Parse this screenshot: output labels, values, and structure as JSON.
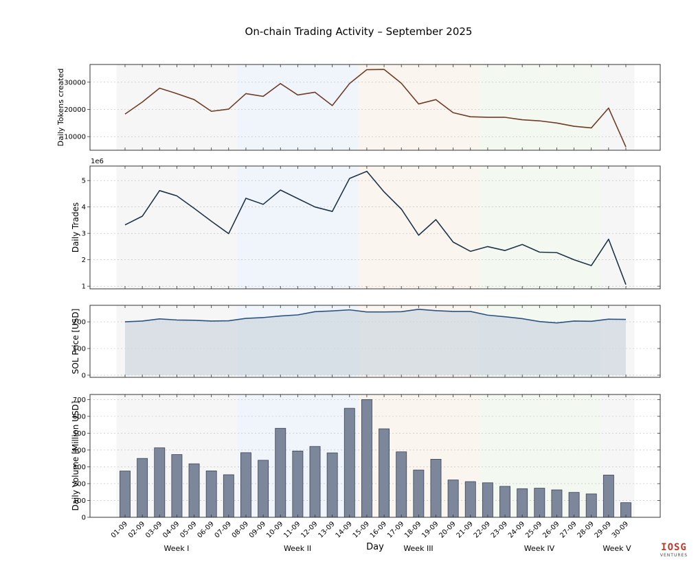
{
  "figure": {
    "title": "On-chain Trading Activity – September 2025",
    "x_axis_label": "Day",
    "watermark": "IOSG VENTURES"
  },
  "weeks": [
    {
      "label": "Week I",
      "start": "01-09",
      "end": "07-09",
      "color": "#e6e6e6"
    },
    {
      "label": "Week II",
      "start": "08-09",
      "end": "14-09",
      "color": "#d4e3f5"
    },
    {
      "label": "Week III",
      "start": "15-09",
      "end": "21-09",
      "color": "#f4e1d3"
    },
    {
      "label": "Week IV",
      "start": "22-09",
      "end": "28-09",
      "color": "#dcebd8"
    },
    {
      "label": "Week V",
      "start": "29-09",
      "end": "30-09",
      "color": "#e6e6e6"
    }
  ],
  "chart_data": [
    {
      "type": "line",
      "ylabel": "Daily Tokens created",
      "color": "#6e3b25",
      "ylim": [
        5000,
        36500
      ],
      "yticks": [
        10000,
        20000,
        30000
      ],
      "x": [
        "01-09",
        "02-09",
        "03-09",
        "04-09",
        "05-09",
        "06-09",
        "07-09",
        "08-09",
        "09-09",
        "10-09",
        "11-09",
        "12-09",
        "13-09",
        "14-09",
        "15-09",
        "16-09",
        "17-09",
        "18-09",
        "19-09",
        "20-09",
        "21-09",
        "22-09",
        "23-09",
        "24-09",
        "25-09",
        "26-09",
        "27-09",
        "28-09",
        "29-09",
        "30-09"
      ],
      "values": [
        18300,
        22700,
        27800,
        25800,
        23600,
        19300,
        20100,
        25800,
        24800,
        29500,
        25300,
        26300,
        21400,
        29500,
        34600,
        34700,
        29600,
        22000,
        23600,
        18800,
        17300,
        17100,
        17100,
        16200,
        15800,
        15000,
        13800,
        13200,
        20500,
        6200
      ]
    },
    {
      "type": "line",
      "ylabel": "Daily Trades",
      "scale_label": "1e6",
      "color": "#1e3347",
      "ylim": [
        0.9,
        5.55
      ],
      "yticks": [
        1,
        2,
        3,
        4,
        5
      ],
      "x": [
        "01-09",
        "02-09",
        "03-09",
        "04-09",
        "05-09",
        "06-09",
        "07-09",
        "08-09",
        "09-09",
        "10-09",
        "11-09",
        "12-09",
        "13-09",
        "14-09",
        "15-09",
        "16-09",
        "17-09",
        "18-09",
        "19-09",
        "20-09",
        "21-09",
        "22-09",
        "23-09",
        "24-09",
        "25-09",
        "26-09",
        "27-09",
        "28-09",
        "29-09",
        "30-09"
      ],
      "values": [
        3.32,
        3.65,
        4.62,
        4.42,
        3.95,
        3.46,
        2.99,
        4.33,
        4.1,
        4.64,
        4.32,
        4.0,
        3.83,
        5.08,
        5.35,
        4.57,
        3.92,
        2.93,
        3.52,
        2.67,
        2.32,
        2.5,
        2.35,
        2.58,
        2.29,
        2.27,
        2.0,
        1.78,
        2.78,
        1.06
      ]
    },
    {
      "type": "area",
      "ylabel": "SOL Price [USD]",
      "color": "#2c5282",
      "fill": "#d0d8e0",
      "ylim": [
        -8,
        262
      ],
      "yticks": [
        0,
        100,
        200
      ],
      "x": [
        "01-09",
        "02-09",
        "03-09",
        "04-09",
        "05-09",
        "06-09",
        "07-09",
        "08-09",
        "09-09",
        "10-09",
        "11-09",
        "12-09",
        "13-09",
        "14-09",
        "15-09",
        "16-09",
        "17-09",
        "18-09",
        "19-09",
        "20-09",
        "21-09",
        "22-09",
        "23-09",
        "24-09",
        "25-09",
        "26-09",
        "27-09",
        "28-09",
        "29-09",
        "30-09"
      ],
      "values": [
        200,
        203,
        211,
        207,
        206,
        203,
        204,
        213,
        216,
        222,
        226,
        238,
        241,
        245,
        237,
        237,
        238,
        247,
        242,
        239,
        239,
        225,
        219,
        212,
        201,
        196,
        203,
        202,
        210,
        209
      ]
    },
    {
      "type": "bar",
      "ylabel": "Daily Volume [Million USD]",
      "color": "#7d879c",
      "edge": "#3b4252",
      "ylim": [
        0,
        730
      ],
      "yticks": [
        0,
        100,
        200,
        300,
        400,
        500,
        600,
        700
      ],
      "categories": [
        "01-09",
        "02-09",
        "03-09",
        "04-09",
        "05-09",
        "06-09",
        "07-09",
        "08-09",
        "09-09",
        "10-09",
        "11-09",
        "12-09",
        "13-09",
        "14-09",
        "15-09",
        "16-09",
        "17-09",
        "18-09",
        "19-09",
        "20-09",
        "21-09",
        "22-09",
        "23-09",
        "24-09",
        "25-09",
        "26-09",
        "27-09",
        "28-09",
        "29-09",
        "30-09"
      ],
      "values": [
        275,
        350,
        413,
        373,
        318,
        276,
        253,
        384,
        339,
        529,
        394,
        421,
        383,
        648,
        700,
        526,
        389,
        281,
        345,
        222,
        212,
        205,
        184,
        170,
        173,
        163,
        148,
        139,
        251,
        87
      ]
    }
  ]
}
